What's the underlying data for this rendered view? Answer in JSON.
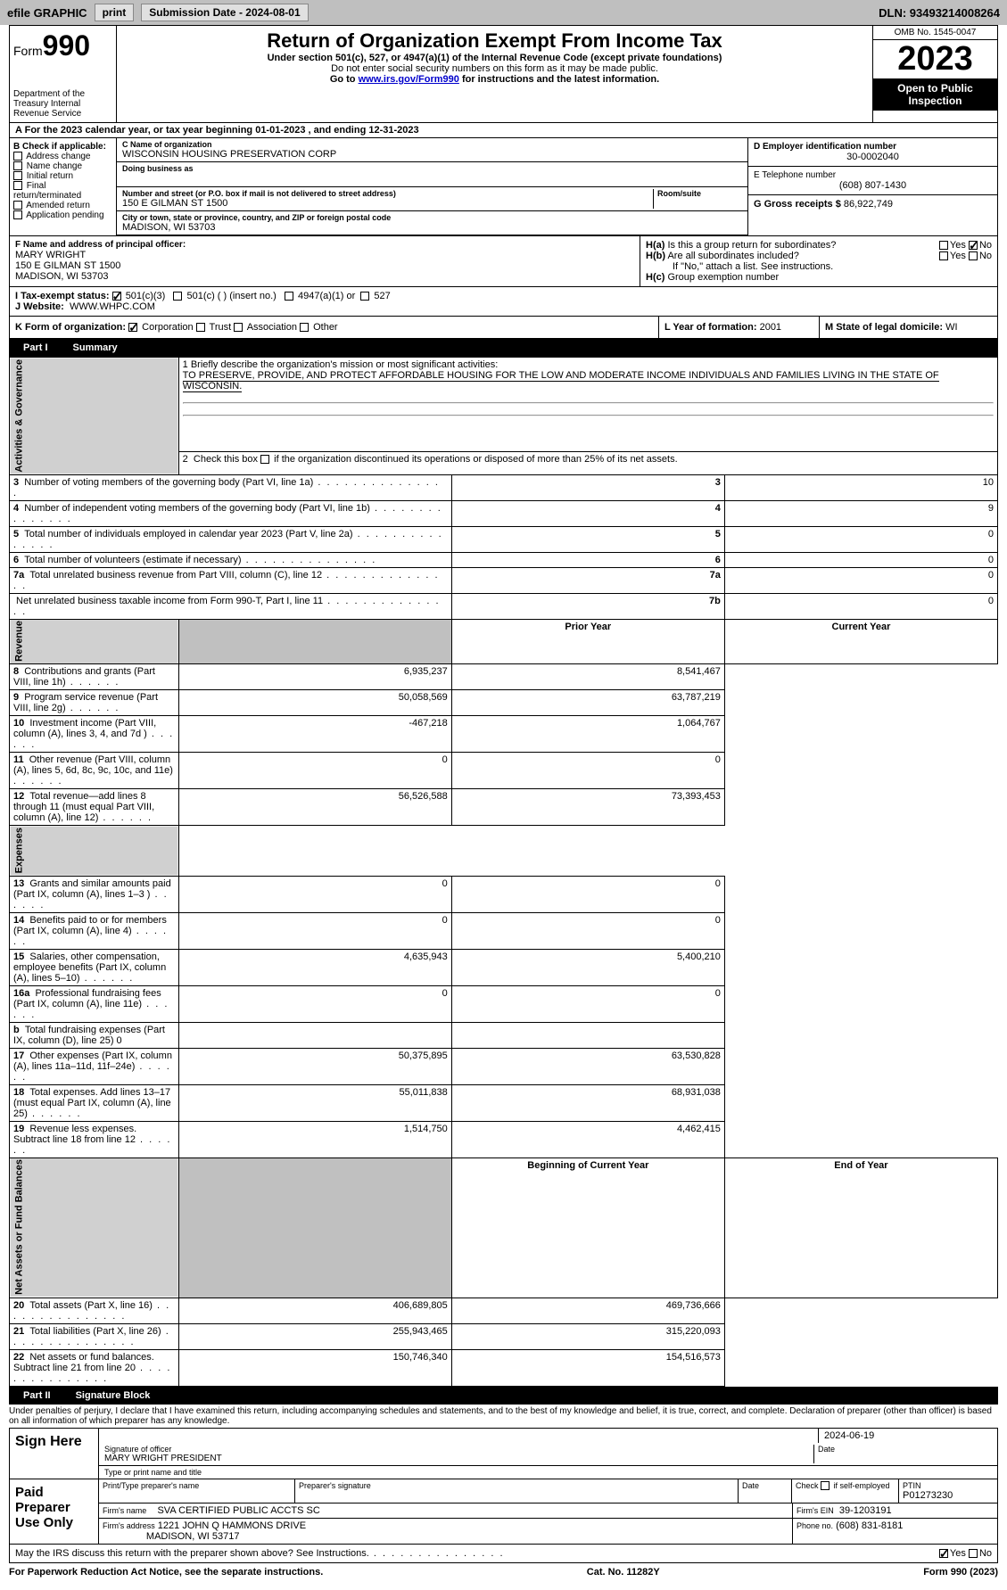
{
  "toolbar": {
    "efile": "efile GRAPHIC",
    "print": "print",
    "submission_label": "Submission Date - 2024-08-01",
    "dln_label": "DLN: 93493214008264"
  },
  "header": {
    "form_label": "Form",
    "form_num": "990",
    "dept": "Department of the Treasury\nInternal Revenue Service",
    "title": "Return of Organization Exempt From Income Tax",
    "sub1": "Under section 501(c), 527, or 4947(a)(1) of the Internal Revenue Code (except private foundations)",
    "sub2": "Do not enter social security numbers on this form as it may be made public.",
    "sub3_pre": "Go to ",
    "sub3_link": "www.irs.gov/Form990",
    "sub3_post": " for instructions and the latest information.",
    "omb": "OMB No. 1545-0047",
    "year": "2023",
    "inspect": "Open to Public Inspection"
  },
  "line_a": "For the 2023 calendar year, or tax year beginning 01-01-2023    , and ending 12-31-2023",
  "section_b": {
    "label": "B Check if applicable:",
    "opts": [
      "Address change",
      "Name change",
      "Initial return",
      "Final return/terminated",
      "Amended return",
      "Application pending"
    ]
  },
  "section_c": {
    "name_label": "C Name of organization",
    "name": "WISCONSIN HOUSING PRESERVATION CORP",
    "dba_label": "Doing business as",
    "addr_label": "Number and street (or P.O. box if mail is not delivered to street address)",
    "room_label": "Room/suite",
    "addr": "150 E GILMAN ST 1500",
    "city_label": "City or town, state or province, country, and ZIP or foreign postal code",
    "city": "MADISON, WI  53703"
  },
  "section_d": {
    "label": "D Employer identification number",
    "val": "30-0002040"
  },
  "section_e": {
    "label": "E Telephone number",
    "val": "(608) 807-1430"
  },
  "section_g": {
    "label": "G Gross receipts $",
    "val": "86,922,749"
  },
  "section_f": {
    "label": "F  Name and address of principal officer:",
    "name": "MARY WRIGHT",
    "addr1": "150 E GILMAN ST 1500",
    "addr2": "MADISON, WI  53703"
  },
  "section_h": {
    "ha": "H(a)  Is this a group return for subordinates?",
    "hb": "H(b)  Are all subordinates included?",
    "hb_note": "If \"No,\" attach a list. See instructions.",
    "hc": "H(c)  Group exemption number",
    "yes": "Yes",
    "no": "No"
  },
  "section_i": {
    "label": "I    Tax-exempt status:",
    "opt1": "501(c)(3)",
    "opt2": "501(c) (  ) (insert no.)",
    "opt3": "4947(a)(1) or",
    "opt4": "527"
  },
  "section_j": {
    "label": "J    Website:",
    "val": "WWW.WHPC.COM"
  },
  "section_k": {
    "label": "K Form of organization:",
    "opts": [
      "Corporation",
      "Trust",
      "Association",
      "Other"
    ]
  },
  "section_l": {
    "label": "L Year of formation:",
    "val": "2001"
  },
  "section_m": {
    "label": "M State of legal domicile:",
    "val": "WI"
  },
  "part1": {
    "label": "Part I",
    "title": "Summary"
  },
  "summary": {
    "side_labels": [
      "Activities & Governance",
      "Revenue",
      "Expenses",
      "Net Assets or Fund Balances"
    ],
    "line1_label": "1  Briefly describe the organization's mission or most significant activities:",
    "line1_text": "TO PRESERVE, PROVIDE, AND PROTECT AFFORDABLE HOUSING FOR THE LOW AND MODERATE INCOME INDIVIDUALS AND FAMILIES LIVING IN THE STATE OF WISCONSIN.",
    "line2": "2   Check this box       if the organization discontinued its operations or disposed of more than 25% of its net assets.",
    "rows_ag": [
      {
        "n": "3",
        "t": "Number of voting members of the governing body (Part VI, line 1a)",
        "k": "3",
        "v": "10"
      },
      {
        "n": "4",
        "t": "Number of independent voting members of the governing body (Part VI, line 1b)",
        "k": "4",
        "v": "9"
      },
      {
        "n": "5",
        "t": "Total number of individuals employed in calendar year 2023 (Part V, line 2a)",
        "k": "5",
        "v": "0"
      },
      {
        "n": "6",
        "t": "Total number of volunteers (estimate if necessary)",
        "k": "6",
        "v": "0"
      },
      {
        "n": "7a",
        "t": "Total unrelated business revenue from Part VIII, column (C), line 12",
        "k": "7a",
        "v": "0"
      },
      {
        "n": "",
        "t": "Net unrelated business taxable income from Form 990-T, Part I, line 11",
        "k": "7b",
        "v": "0"
      }
    ],
    "header_prior": "Prior Year",
    "header_current": "Current Year",
    "rows_rev": [
      {
        "n": "8",
        "t": "Contributions and grants (Part VIII, line 1h)",
        "p": "6,935,237",
        "c": "8,541,467"
      },
      {
        "n": "9",
        "t": "Program service revenue (Part VIII, line 2g)",
        "p": "50,058,569",
        "c": "63,787,219"
      },
      {
        "n": "10",
        "t": "Investment income (Part VIII, column (A), lines 3, 4, and 7d )",
        "p": "-467,218",
        "c": "1,064,767"
      },
      {
        "n": "11",
        "t": "Other revenue (Part VIII, column (A), lines 5, 6d, 8c, 9c, 10c, and 11e)",
        "p": "0",
        "c": "0"
      },
      {
        "n": "12",
        "t": "Total revenue—add lines 8 through 11 (must equal Part VIII, column (A), line 12)",
        "p": "56,526,588",
        "c": "73,393,453"
      }
    ],
    "rows_exp": [
      {
        "n": "13",
        "t": "Grants and similar amounts paid (Part IX, column (A), lines 1–3 )",
        "p": "0",
        "c": "0"
      },
      {
        "n": "14",
        "t": "Benefits paid to or for members (Part IX, column (A), line 4)",
        "p": "0",
        "c": "0"
      },
      {
        "n": "15",
        "t": "Salaries, other compensation, employee benefits (Part IX, column (A), lines 5–10)",
        "p": "4,635,943",
        "c": "5,400,210"
      },
      {
        "n": "16a",
        "t": "Professional fundraising fees (Part IX, column (A), line 11e)",
        "p": "0",
        "c": "0"
      },
      {
        "n": "b",
        "t": "Total fundraising expenses (Part IX, column (D), line 25) 0",
        "p": "",
        "c": "",
        "shade": true
      },
      {
        "n": "17",
        "t": "Other expenses (Part IX, column (A), lines 11a–11d, 11f–24e)",
        "p": "50,375,895",
        "c": "63,530,828"
      },
      {
        "n": "18",
        "t": "Total expenses. Add lines 13–17 (must equal Part IX, column (A), line 25)",
        "p": "55,011,838",
        "c": "68,931,038"
      },
      {
        "n": "19",
        "t": "Revenue less expenses. Subtract line 18 from line 12",
        "p": "1,514,750",
        "c": "4,462,415"
      }
    ],
    "header_begin": "Beginning of Current Year",
    "header_end": "End of Year",
    "rows_na": [
      {
        "n": "20",
        "t": "Total assets (Part X, line 16)",
        "p": "406,689,805",
        "c": "469,736,666"
      },
      {
        "n": "21",
        "t": "Total liabilities (Part X, line 26)",
        "p": "255,943,465",
        "c": "315,220,093"
      },
      {
        "n": "22",
        "t": "Net assets or fund balances. Subtract line 21 from line 20",
        "p": "150,746,340",
        "c": "154,516,573"
      }
    ]
  },
  "part2": {
    "label": "Part II",
    "title": "Signature Block"
  },
  "sig": {
    "perjury": "Under penalties of perjury, I declare that I have examined this return, including accompanying schedules and statements, and to the best of my knowledge and belief, it is true, correct, and complete. Declaration of preparer (other than officer) is based on all information of which preparer has any knowledge.",
    "sign_here": "Sign Here",
    "sig_officer": "Signature of officer",
    "officer_name": "MARY WRIGHT PRESIDENT",
    "type_name": "Type or print name and title",
    "date_label": "Date",
    "date_val": "2024-06-19",
    "paid": "Paid Preparer Use Only",
    "prep_name_label": "Print/Type preparer's name",
    "prep_sig_label": "Preparer's signature",
    "check_self": "Check         if self-employed",
    "ptin_label": "PTIN",
    "ptin": "P01273230",
    "firm_name_label": "Firm's name",
    "firm_name": "SVA CERTIFIED PUBLIC ACCTS SC",
    "firm_ein_label": "Firm's EIN",
    "firm_ein": "39-1203191",
    "firm_addr_label": "Firm's address",
    "firm_addr1": "1221 JOHN Q HAMMONS DRIVE",
    "firm_addr2": "MADISON, WI  53717",
    "phone_label": "Phone no.",
    "phone": "(608) 831-8181",
    "discuss": "May the IRS discuss this return with the preparer shown above? See Instructions."
  },
  "footer": {
    "left": "For Paperwork Reduction Act Notice, see the separate instructions.",
    "mid": "Cat. No. 11282Y",
    "right": "Form 990 (2023)"
  }
}
